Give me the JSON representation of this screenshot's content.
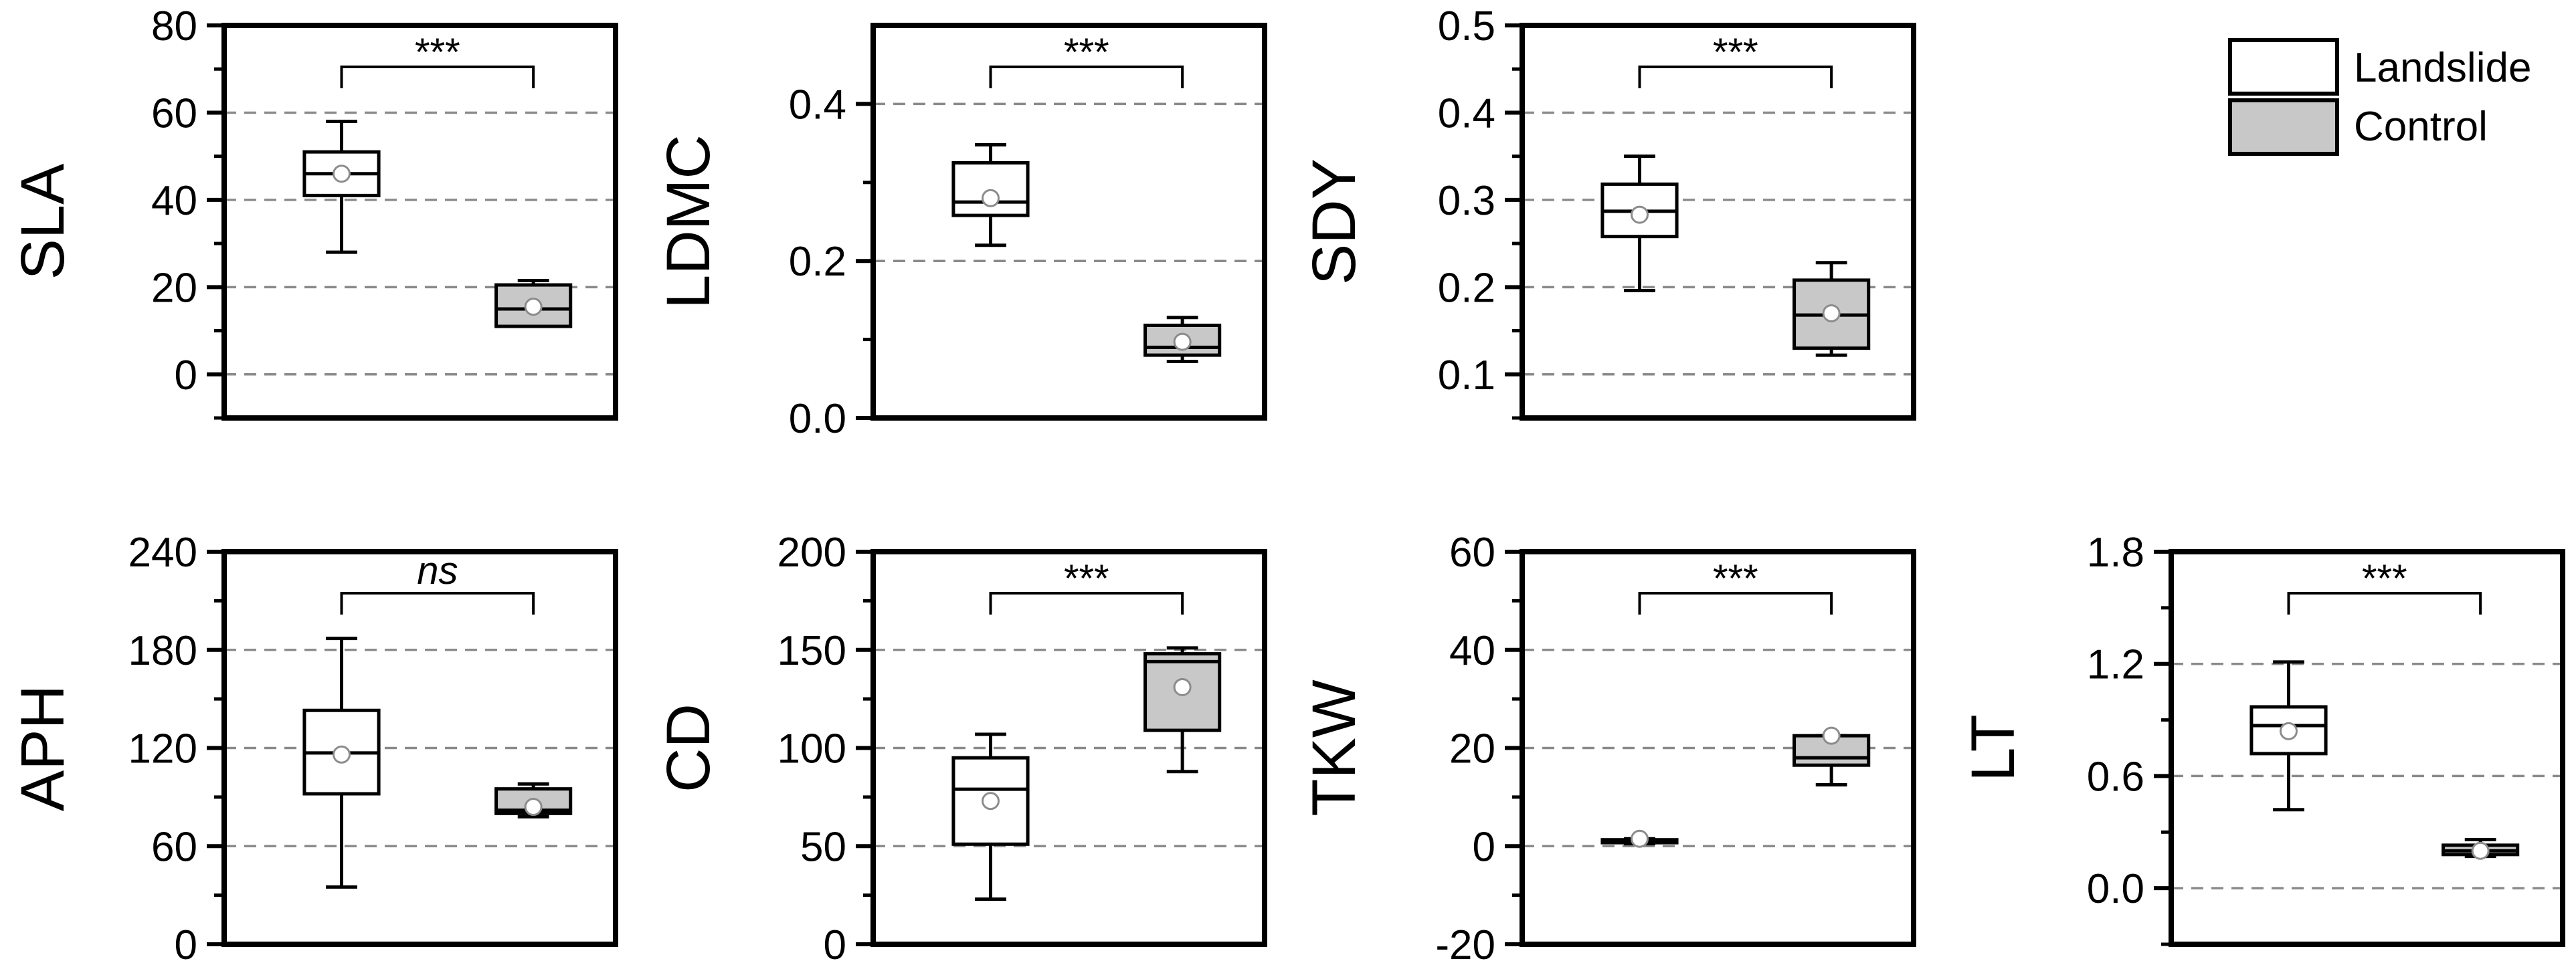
{
  "chart_data": [
    {
      "type": "box",
      "ylabel": "SLA",
      "ylim": [
        -10,
        80
      ],
      "ticks": [
        0,
        20,
        40,
        60,
        80
      ],
      "tick_labels": [
        "0",
        "20",
        "40",
        "60",
        "80"
      ],
      "grid": [
        0,
        20,
        40,
        60
      ],
      "categories": [
        "Landslide",
        "Control"
      ],
      "series": [
        {
          "name": "Landslide",
          "min": 28,
          "q1": 41,
          "median": 46,
          "q3": 51,
          "max": 58,
          "mean": 46
        },
        {
          "name": "Control",
          "min": 11,
          "q1": 11,
          "median": 15,
          "q3": 20.5,
          "max": 21.5,
          "mean": 15.5
        }
      ],
      "significance": "***"
    },
    {
      "type": "box",
      "ylabel": "LDMC",
      "ylim": [
        0,
        0.5
      ],
      "ticks": [
        0.0,
        0.2,
        0.4
      ],
      "tick_labels": [
        "0.0",
        "0.2",
        "0.4"
      ],
      "grid": [
        0.2,
        0.4
      ],
      "categories": [
        "Landslide",
        "Control"
      ],
      "series": [
        {
          "name": "Landslide",
          "min": 0.22,
          "q1": 0.258,
          "median": 0.275,
          "q3": 0.325,
          "max": 0.348,
          "mean": 0.28
        },
        {
          "name": "Control",
          "min": 0.072,
          "q1": 0.08,
          "median": 0.09,
          "q3": 0.118,
          "max": 0.128,
          "mean": 0.097
        }
      ],
      "significance": "***"
    },
    {
      "type": "box",
      "ylabel": "SDY",
      "ylim": [
        0.05,
        0.5
      ],
      "ticks": [
        0.1,
        0.2,
        0.3,
        0.4,
        0.5
      ],
      "tick_labels": [
        "0.1",
        "0.2",
        "0.3",
        "0.4",
        "0.5"
      ],
      "grid": [
        0.1,
        0.2,
        0.3,
        0.4
      ],
      "categories": [
        "Landslide",
        "Control"
      ],
      "series": [
        {
          "name": "Landslide",
          "min": 0.196,
          "q1": 0.258,
          "median": 0.287,
          "q3": 0.318,
          "max": 0.35,
          "mean": 0.283
        },
        {
          "name": "Control",
          "min": 0.122,
          "q1": 0.13,
          "median": 0.168,
          "q3": 0.208,
          "max": 0.228,
          "mean": 0.17
        }
      ],
      "significance": "***"
    },
    {
      "type": "box",
      "ylabel": "APH",
      "ylim": [
        0,
        240
      ],
      "ticks": [
        0,
        60,
        120,
        180,
        240
      ],
      "tick_labels": [
        "0",
        "60",
        "120",
        "180",
        "240"
      ],
      "grid": [
        60,
        120,
        180
      ],
      "categories": [
        "Landslide",
        "Control"
      ],
      "series": [
        {
          "name": "Landslide",
          "min": 35,
          "q1": 92,
          "median": 117,
          "q3": 143,
          "max": 187,
          "mean": 116
        },
        {
          "name": "Control",
          "min": 78,
          "q1": 80,
          "median": 82,
          "q3": 95,
          "max": 98,
          "mean": 84
        }
      ],
      "significance": "ns"
    },
    {
      "type": "box",
      "ylabel": "CD",
      "ylim": [
        0,
        200
      ],
      "ticks": [
        0,
        50,
        100,
        150,
        200
      ],
      "tick_labels": [
        "0",
        "50",
        "100",
        "150",
        "200"
      ],
      "grid": [
        50,
        100,
        150
      ],
      "categories": [
        "Landslide",
        "Control"
      ],
      "series": [
        {
          "name": "Landslide",
          "min": 23,
          "q1": 51,
          "median": 79,
          "q3": 95,
          "max": 107,
          "mean": 73
        },
        {
          "name": "Control",
          "min": 88,
          "q1": 109,
          "median": 144,
          "q3": 148,
          "max": 151,
          "mean": 131
        }
      ],
      "significance": "***"
    },
    {
      "type": "box",
      "ylabel": "TKW",
      "ylim": [
        -20,
        60
      ],
      "ticks": [
        -20,
        0,
        20,
        40,
        60
      ],
      "tick_labels": [
        "-20",
        "0",
        "20",
        "40",
        "60"
      ],
      "grid": [
        0,
        20,
        40
      ],
      "categories": [
        "Landslide",
        "Control"
      ],
      "series": [
        {
          "name": "Landslide",
          "min": 0.5,
          "q1": 0.7,
          "median": 1.0,
          "q3": 1.3,
          "max": 1.5,
          "mean": 1.5
        },
        {
          "name": "Control",
          "min": 12.5,
          "q1": 16.5,
          "median": 18,
          "q3": 22.5,
          "max": 22.5,
          "mean": 22.5
        }
      ],
      "significance": "***"
    },
    {
      "type": "box",
      "ylabel": "LT",
      "ylim": [
        -0.3,
        1.8
      ],
      "ticks": [
        0.0,
        0.6,
        1.2,
        1.8
      ],
      "tick_labels": [
        "0.0",
        "0.6",
        "1.2",
        "1.8"
      ],
      "grid": [
        0.0,
        0.6,
        1.2
      ],
      "categories": [
        "Landslide",
        "Control"
      ],
      "series": [
        {
          "name": "Landslide",
          "min": 0.42,
          "q1": 0.72,
          "median": 0.87,
          "q3": 0.97,
          "max": 1.21,
          "mean": 0.84
        },
        {
          "name": "Control",
          "min": 0.17,
          "q1": 0.18,
          "median": 0.2,
          "q3": 0.23,
          "max": 0.26,
          "mean": 0.2
        }
      ],
      "significance": "***"
    }
  ],
  "legend": {
    "items": [
      {
        "label": "Landslide",
        "fill": "#ffffff"
      },
      {
        "label": "Control",
        "fill": "#c8c8c8"
      }
    ]
  },
  "colors": {
    "landslide_fill": "#ffffff",
    "control_fill": "#c8c8c8",
    "grid": "#8a8a8a",
    "mean_marker_edge": "#8c8c8c"
  }
}
